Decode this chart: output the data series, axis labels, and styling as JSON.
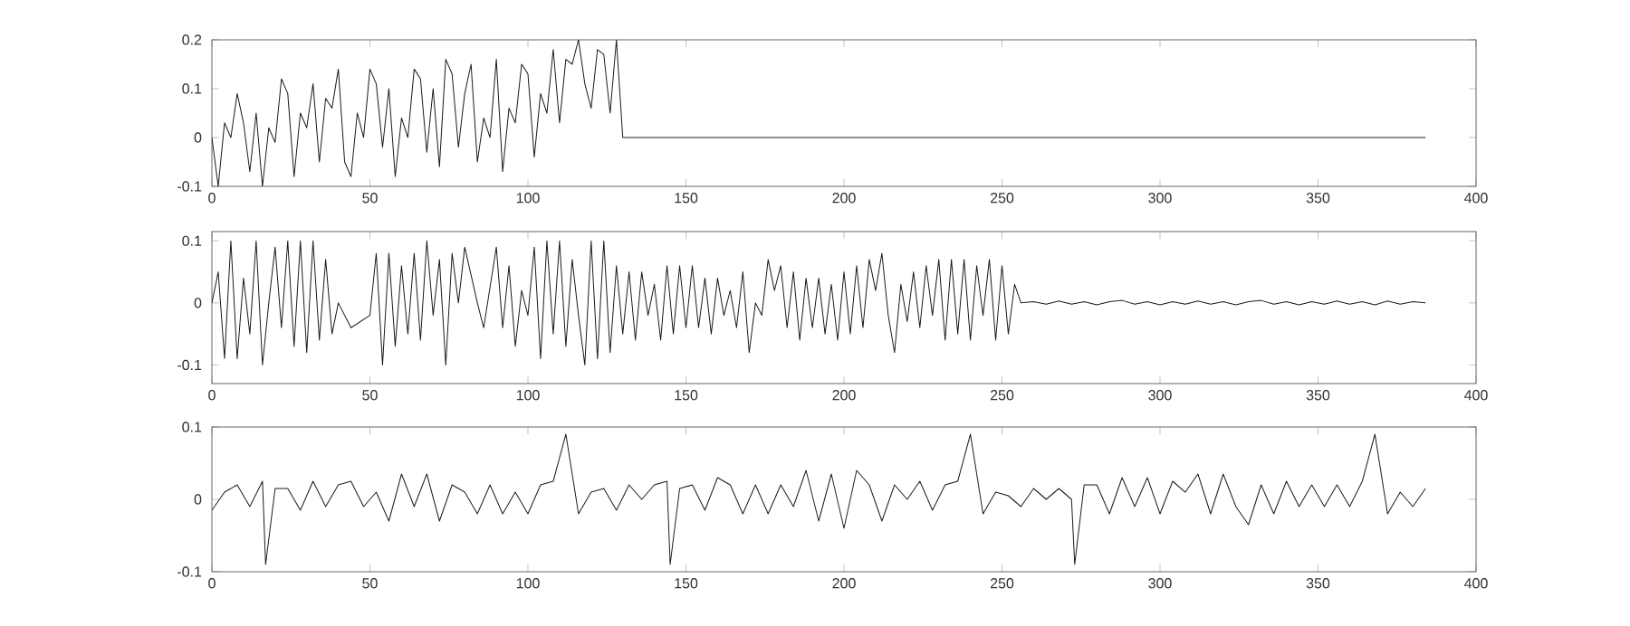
{
  "chart_data": [
    {
      "type": "line",
      "color": "#1a1a1a",
      "xlim": [
        0,
        400
      ],
      "xticks": [
        0,
        50,
        100,
        150,
        200,
        250,
        300,
        350,
        400
      ],
      "ylim": [
        -0.1,
        0.2
      ],
      "yticks": [
        -0.1,
        0,
        0.1,
        0.2
      ],
      "x": [
        0,
        2,
        4,
        6,
        8,
        10,
        12,
        14,
        16,
        18,
        20,
        22,
        24,
        26,
        28,
        30,
        32,
        34,
        36,
        38,
        40,
        42,
        44,
        46,
        48,
        50,
        52,
        54,
        56,
        58,
        60,
        62,
        64,
        66,
        68,
        70,
        72,
        74,
        76,
        78,
        80,
        82,
        84,
        86,
        88,
        90,
        92,
        94,
        96,
        98,
        100,
        102,
        104,
        106,
        108,
        110,
        112,
        114,
        116,
        118,
        120,
        122,
        124,
        126,
        128,
        130,
        384
      ],
      "values": [
        0,
        -0.1,
        0.03,
        0.0,
        0.09,
        0.03,
        -0.07,
        0.05,
        -0.1,
        0.02,
        -0.01,
        0.12,
        0.09,
        -0.08,
        0.05,
        0.02,
        0.11,
        -0.05,
        0.08,
        0.06,
        0.14,
        -0.05,
        -0.08,
        0.05,
        0.0,
        0.14,
        0.11,
        -0.02,
        0.1,
        -0.08,
        0.04,
        0.0,
        0.14,
        0.12,
        -0.03,
        0.1,
        -0.06,
        0.16,
        0.13,
        -0.02,
        0.09,
        0.15,
        -0.05,
        0.04,
        0.0,
        0.16,
        -0.07,
        0.06,
        0.03,
        0.15,
        0.13,
        -0.04,
        0.09,
        0.05,
        0.18,
        0.03,
        0.16,
        0.15,
        0.2,
        0.11,
        0.06,
        0.18,
        0.17,
        0.05,
        0.2,
        0,
        0
      ]
    },
    {
      "type": "line",
      "color": "#1a1a1a",
      "xlim": [
        0,
        400
      ],
      "xticks": [
        0,
        50,
        100,
        150,
        200,
        250,
        300,
        350,
        400
      ],
      "ylim": [
        -0.13,
        0.115
      ],
      "yticks": [
        -0.1,
        0,
        0.1
      ],
      "x": [
        0,
        2,
        4,
        6,
        8,
        10,
        12,
        14,
        16,
        18,
        20,
        22,
        24,
        26,
        28,
        30,
        32,
        34,
        36,
        38,
        40,
        42,
        44,
        46,
        48,
        50,
        52,
        54,
        56,
        58,
        60,
        62,
        64,
        66,
        68,
        70,
        72,
        74,
        76,
        78,
        80,
        82,
        84,
        86,
        88,
        90,
        92,
        94,
        96,
        98,
        100,
        102,
        104,
        106,
        108,
        110,
        112,
        114,
        116,
        118,
        120,
        122,
        124,
        126,
        128,
        130,
        132,
        134,
        136,
        138,
        140,
        142,
        144,
        146,
        148,
        150,
        152,
        154,
        156,
        158,
        160,
        162,
        164,
        166,
        168,
        170,
        172,
        174,
        176,
        178,
        180,
        182,
        184,
        186,
        188,
        190,
        192,
        194,
        196,
        198,
        200,
        202,
        204,
        206,
        208,
        210,
        212,
        214,
        216,
        218,
        220,
        222,
        224,
        226,
        228,
        230,
        232,
        234,
        236,
        238,
        240,
        242,
        244,
        246,
        248,
        250,
        252,
        254,
        256,
        260,
        264,
        268,
        272,
        276,
        280,
        284,
        288,
        292,
        296,
        300,
        304,
        308,
        312,
        316,
        320,
        324,
        328,
        332,
        336,
        340,
        344,
        348,
        352,
        356,
        360,
        364,
        368,
        372,
        376,
        380,
        384
      ],
      "values": [
        0,
        0.05,
        -0.09,
        0.1,
        -0.09,
        0.04,
        -0.05,
        0.1,
        -0.1,
        0.0,
        0.09,
        -0.04,
        0.1,
        -0.07,
        0.1,
        -0.08,
        0.1,
        -0.06,
        0.07,
        -0.05,
        0.0,
        null,
        -0.04,
        null,
        null,
        -0.02,
        0.08,
        -0.1,
        0.08,
        -0.07,
        0.06,
        -0.05,
        0.08,
        -0.06,
        0.1,
        -0.02,
        0.07,
        -0.1,
        0.08,
        0.0,
        0.09,
        null,
        0.0,
        -0.04,
        null,
        0.09,
        -0.04,
        0.06,
        -0.07,
        0.02,
        -0.02,
        0.09,
        -0.09,
        0.1,
        -0.05,
        0.1,
        -0.07,
        0.07,
        -0.02,
        -0.1,
        0.1,
        -0.09,
        0.1,
        -0.08,
        0.06,
        -0.05,
        0.05,
        -0.06,
        0.05,
        -0.02,
        0.03,
        -0.06,
        0.06,
        -0.05,
        0.06,
        -0.04,
        0.06,
        -0.04,
        0.04,
        -0.05,
        0.04,
        -0.02,
        0.02,
        -0.04,
        0.05,
        -0.08,
        0.0,
        -0.02,
        0.07,
        0.02,
        0.06,
        -0.04,
        0.05,
        -0.06,
        0.04,
        -0.04,
        0.04,
        -0.05,
        0.03,
        -0.06,
        0.05,
        -0.05,
        0.06,
        -0.04,
        0.07,
        0.02,
        0.08,
        -0.02,
        -0.08,
        0.03,
        -0.03,
        0.05,
        -0.04,
        0.06,
        -0.02,
        0.07,
        -0.06,
        0.07,
        -0.05,
        0.07,
        -0.06,
        0.06,
        -0.02,
        0.07,
        -0.06,
        0.06,
        -0.05,
        0.03,
        0.0,
        0.002,
        -0.002,
        0.003,
        -0.002,
        0.002,
        -0.003,
        0.002,
        0.004,
        -0.002,
        0.002,
        -0.003,
        0.002,
        -0.002,
        0.003,
        -0.002,
        0.002,
        -0.003,
        0.002,
        0.004,
        -0.002,
        0.002,
        -0.003,
        0.002,
        -0.002,
        0.003,
        -0.002,
        0.002,
        -0.003,
        0.003,
        -0.002,
        0.002,
        0.0
      ]
    },
    {
      "type": "line",
      "color": "#1a1a1a",
      "xlim": [
        0,
        400
      ],
      "xticks": [
        0,
        50,
        100,
        150,
        200,
        250,
        300,
        350,
        400
      ],
      "ylim": [
        -0.1,
        0.1
      ],
      "yticks": [
        -0.1,
        0,
        0.1
      ],
      "x": [
        0,
        4,
        8,
        12,
        16,
        17,
        20,
        24,
        28,
        32,
        36,
        40,
        44,
        48,
        52,
        56,
        60,
        64,
        68,
        72,
        76,
        80,
        84,
        88,
        92,
        96,
        100,
        104,
        108,
        112,
        116,
        120,
        124,
        128,
        132,
        136,
        140,
        144,
        145,
        148,
        152,
        156,
        160,
        164,
        168,
        172,
        176,
        180,
        184,
        188,
        192,
        196,
        200,
        204,
        208,
        212,
        216,
        220,
        224,
        228,
        232,
        236,
        240,
        244,
        248,
        252,
        256,
        260,
        264,
        268,
        272,
        273,
        276,
        280,
        284,
        288,
        292,
        296,
        300,
        304,
        308,
        312,
        316,
        320,
        324,
        328,
        332,
        336,
        340,
        344,
        348,
        352,
        356,
        360,
        364,
        368,
        372,
        376,
        380,
        384
      ],
      "values": [
        -0.015,
        0.01,
        0.02,
        -0.01,
        0.025,
        -0.09,
        0.015,
        0.015,
        -0.015,
        0.025,
        -0.01,
        0.02,
        0.025,
        -0.01,
        0.01,
        -0.03,
        0.035,
        -0.01,
        0.035,
        -0.03,
        0.02,
        0.01,
        -0.02,
        0.02,
        -0.02,
        0.01,
        -0.02,
        0.02,
        0.025,
        0.09,
        -0.02,
        0.01,
        0.015,
        -0.015,
        0.02,
        0.0,
        0.02,
        0.025,
        -0.09,
        0.015,
        0.02,
        -0.015,
        0.03,
        0.02,
        -0.02,
        0.02,
        -0.02,
        0.02,
        -0.01,
        0.04,
        -0.03,
        0.035,
        -0.04,
        0.04,
        0.02,
        -0.03,
        0.02,
        0.0,
        0.025,
        -0.015,
        0.02,
        0.025,
        0.09,
        -0.02,
        0.01,
        0.005,
        -0.01,
        0.015,
        0.0,
        0.015,
        0.0,
        -0.09,
        0.02,
        0.02,
        -0.02,
        0.03,
        -0.01,
        0.03,
        -0.02,
        0.025,
        0.01,
        0.035,
        -0.02,
        0.035,
        -0.01,
        -0.035,
        0.02,
        -0.02,
        0.025,
        -0.01,
        0.02,
        -0.01,
        0.02,
        -0.01,
        0.025,
        0.09,
        -0.02,
        0.01,
        -0.01,
        0.015
      ]
    }
  ]
}
